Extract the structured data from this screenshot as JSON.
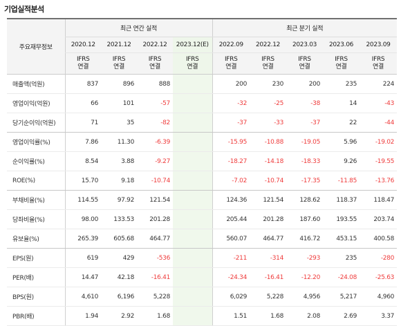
{
  "title": "기업실적분석",
  "header": {
    "label_col": "주요재무정보",
    "annual_group": "최근 연간 실적",
    "quarterly_group": "최근 분기 실적"
  },
  "periods": [
    {
      "date": "2020.12",
      "std_a": "IFRS",
      "std_b": "연결"
    },
    {
      "date": "2021.12",
      "std_a": "IFRS",
      "std_b": "연결"
    },
    {
      "date": "2022.12",
      "std_a": "IFRS",
      "std_b": "연결"
    },
    {
      "date": "2023.12(E)",
      "std_a": "IFRS",
      "std_b": "연결"
    },
    {
      "date": "2022.09",
      "std_a": "IFRS",
      "std_b": "연결"
    },
    {
      "date": "2022.12",
      "std_a": "IFRS",
      "std_b": "연결"
    },
    {
      "date": "2023.03",
      "std_a": "IFRS",
      "std_b": "연결"
    },
    {
      "date": "2023.06",
      "std_a": "IFRS",
      "std_b": "연결"
    },
    {
      "date": "2023.09",
      "std_a": "IFRS",
      "std_b": "연결"
    }
  ],
  "estimate_column_index": 3,
  "group_ends_after_rows": [
    2,
    5,
    8
  ],
  "colors": {
    "negative": "#ef3b3b",
    "standard_label": "#f26522",
    "estimate_bg": "#f0f8ec"
  },
  "rows": [
    {
      "label": "매출액(억원)",
      "cells": [
        "837",
        "896",
        "888",
        "",
        "200",
        "230",
        "200",
        "235",
        "224"
      ]
    },
    {
      "label": "영업이익(억원)",
      "cells": [
        "66",
        "101",
        "-57",
        "",
        "-32",
        "-25",
        "-38",
        "14",
        "-43"
      ]
    },
    {
      "label": "당기순이익(억원)",
      "cells": [
        "71",
        "35",
        "-82",
        "",
        "-37",
        "-33",
        "-37",
        "22",
        "-44"
      ]
    },
    {
      "label": "영업이익률(%)",
      "cells": [
        "7.86",
        "11.30",
        "-6.39",
        "",
        "-15.95",
        "-10.88",
        "-19.05",
        "5.96",
        "-19.02"
      ]
    },
    {
      "label": "순이익률(%)",
      "cells": [
        "8.54",
        "3.88",
        "-9.27",
        "",
        "-18.27",
        "-14.18",
        "-18.33",
        "9.26",
        "-19.55"
      ]
    },
    {
      "label": "ROE(%)",
      "cells": [
        "15.70",
        "9.18",
        "-10.74",
        "",
        "-7.02",
        "-10.74",
        "-17.35",
        "-11.85",
        "-13.76"
      ]
    },
    {
      "label": "부채비율(%)",
      "cells": [
        "114.55",
        "97.92",
        "121.54",
        "",
        "124.36",
        "121.54",
        "128.62",
        "118.37",
        "118.47"
      ]
    },
    {
      "label": "당좌비율(%)",
      "cells": [
        "98.00",
        "133.53",
        "201.28",
        "",
        "205.44",
        "201.28",
        "187.60",
        "193.55",
        "203.74"
      ]
    },
    {
      "label": "유보율(%)",
      "cells": [
        "265.39",
        "605.68",
        "464.77",
        "",
        "560.07",
        "464.77",
        "416.72",
        "453.15",
        "400.58"
      ]
    },
    {
      "label": "EPS(원)",
      "cells": [
        "619",
        "429",
        "-536",
        "",
        "-211",
        "-314",
        "-293",
        "235",
        "-280"
      ]
    },
    {
      "label": "PER(배)",
      "cells": [
        "14.47",
        "42.18",
        "-16.41",
        "",
        "-24.34",
        "-16.41",
        "-12.20",
        "-24.08",
        "-25.63"
      ]
    },
    {
      "label": "BPS(원)",
      "cells": [
        "4,610",
        "6,196",
        "5,228",
        "",
        "6,029",
        "5,228",
        "4,956",
        "5,217",
        "4,960"
      ]
    },
    {
      "label": "PBR(배)",
      "cells": [
        "1.94",
        "2.92",
        "1.68",
        "",
        "1.51",
        "1.68",
        "2.08",
        "2.69",
        "3.37"
      ]
    }
  ]
}
